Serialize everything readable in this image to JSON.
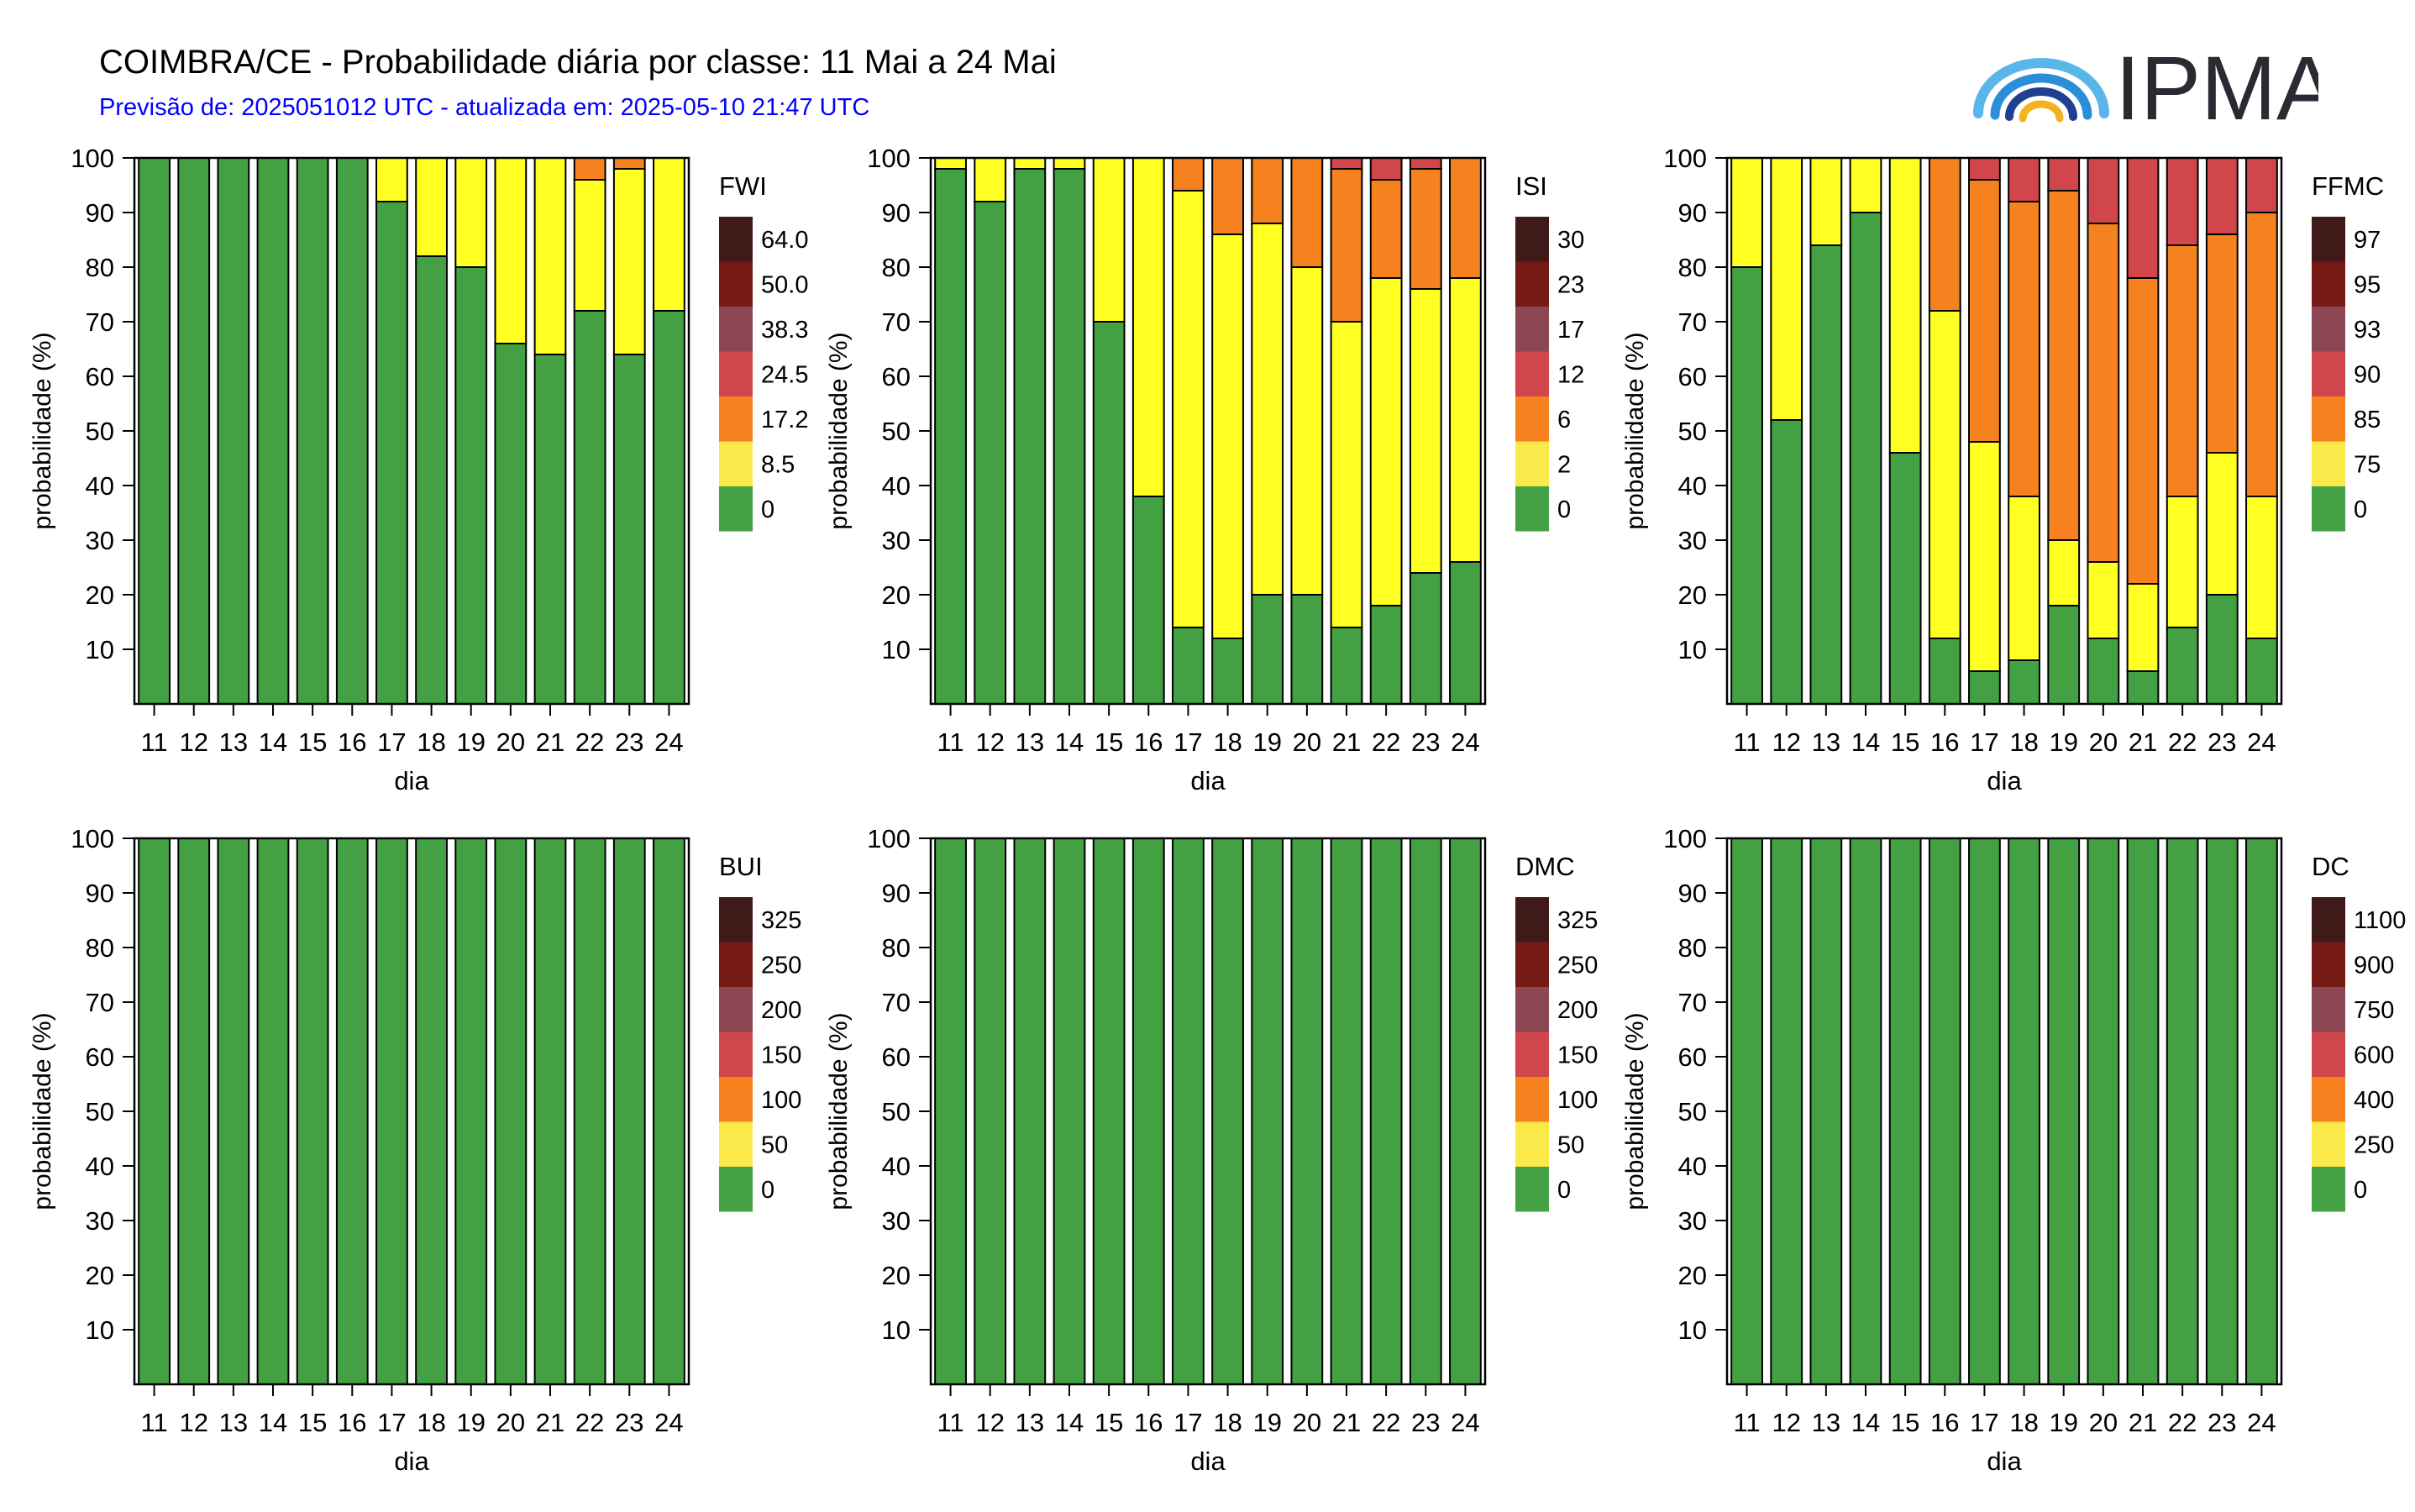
{
  "header": {
    "title": "COIMBRA/CE - Probabilidade diária por classe: 11 Mai a 24 Mai",
    "subtitle": "Previsão de: 2025051012 UTC - atualizada em: 2025-05-10 21:47 UTC",
    "subtitle_color": "#0000ff",
    "logo_text": "IPMA"
  },
  "class_colors": [
    "#43a143",
    "#ffff21",
    "#f5821f",
    "#d0464b",
    "#8c4654",
    "#761a16",
    "#3f1a19"
  ],
  "legend_swatch_colors": [
    "#43a143",
    "#fbe84a",
    "#f5821f",
    "#d0464b",
    "#8c4654",
    "#761a16",
    "#3f1a19"
  ],
  "chart_data": [
    {
      "type": "bar",
      "stacked": true,
      "title": "FWI",
      "xlabel": "dia",
      "ylabel": "probabilidade (%)",
      "ylim": [
        0,
        100
      ],
      "yticks": [
        10,
        20,
        30,
        40,
        50,
        60,
        70,
        80,
        90,
        100
      ],
      "categories": [
        "11",
        "12",
        "13",
        "14",
        "15",
        "16",
        "17",
        "18",
        "19",
        "20",
        "21",
        "22",
        "23",
        "24"
      ],
      "legend_labels": [
        "0",
        "8.5",
        "17.2",
        "24.5",
        "38.3",
        "50.0",
        "64.0"
      ],
      "series": [
        {
          "values": [
            100,
            100,
            100,
            100,
            100,
            100,
            92,
            82,
            80,
            66,
            64,
            72,
            64,
            72
          ]
        },
        {
          "values": [
            0,
            0,
            0,
            0,
            0,
            0,
            8,
            18,
            20,
            34,
            36,
            24,
            34,
            28
          ]
        },
        {
          "values": [
            0,
            0,
            0,
            0,
            0,
            0,
            0,
            0,
            0,
            0,
            0,
            4,
            2,
            0
          ]
        },
        {
          "values": [
            0,
            0,
            0,
            0,
            0,
            0,
            0,
            0,
            0,
            0,
            0,
            0,
            0,
            0
          ]
        },
        {
          "values": [
            0,
            0,
            0,
            0,
            0,
            0,
            0,
            0,
            0,
            0,
            0,
            0,
            0,
            0
          ]
        },
        {
          "values": [
            0,
            0,
            0,
            0,
            0,
            0,
            0,
            0,
            0,
            0,
            0,
            0,
            0,
            0
          ]
        },
        {
          "values": [
            0,
            0,
            0,
            0,
            0,
            0,
            0,
            0,
            0,
            0,
            0,
            0,
            0,
            0
          ]
        }
      ]
    },
    {
      "type": "bar",
      "stacked": true,
      "title": "ISI",
      "xlabel": "dia",
      "ylabel": "probabilidade (%)",
      "ylim": [
        0,
        100
      ],
      "yticks": [
        10,
        20,
        30,
        40,
        50,
        60,
        70,
        80,
        90,
        100
      ],
      "categories": [
        "11",
        "12",
        "13",
        "14",
        "15",
        "16",
        "17",
        "18",
        "19",
        "20",
        "21",
        "22",
        "23",
        "24"
      ],
      "legend_labels": [
        "0",
        "2",
        "6",
        "12",
        "17",
        "23",
        "30"
      ],
      "series": [
        {
          "values": [
            98,
            92,
            98,
            98,
            70,
            38,
            14,
            12,
            20,
            20,
            14,
            18,
            24,
            26
          ]
        },
        {
          "values": [
            2,
            8,
            2,
            2,
            30,
            62,
            80,
            74,
            68,
            60,
            56,
            60,
            52,
            52
          ]
        },
        {
          "values": [
            0,
            0,
            0,
            0,
            0,
            0,
            6,
            14,
            12,
            20,
            28,
            18,
            22,
            22
          ]
        },
        {
          "values": [
            0,
            0,
            0,
            0,
            0,
            0,
            0,
            0,
            0,
            0,
            2,
            4,
            2,
            0
          ]
        },
        {
          "values": [
            0,
            0,
            0,
            0,
            0,
            0,
            0,
            0,
            0,
            0,
            0,
            0,
            0,
            0
          ]
        },
        {
          "values": [
            0,
            0,
            0,
            0,
            0,
            0,
            0,
            0,
            0,
            0,
            0,
            0,
            0,
            0
          ]
        },
        {
          "values": [
            0,
            0,
            0,
            0,
            0,
            0,
            0,
            0,
            0,
            0,
            0,
            0,
            0,
            0
          ]
        }
      ]
    },
    {
      "type": "bar",
      "stacked": true,
      "title": "FFMC",
      "xlabel": "dia",
      "ylabel": "probabilidade (%)",
      "ylim": [
        0,
        100
      ],
      "yticks": [
        10,
        20,
        30,
        40,
        50,
        60,
        70,
        80,
        90,
        100
      ],
      "categories": [
        "11",
        "12",
        "13",
        "14",
        "15",
        "16",
        "17",
        "18",
        "19",
        "20",
        "21",
        "22",
        "23",
        "24"
      ],
      "legend_labels": [
        "0",
        "75",
        "85",
        "90",
        "93",
        "95",
        "97"
      ],
      "series": [
        {
          "values": [
            80,
            52,
            84,
            90,
            46,
            12,
            6,
            8,
            18,
            12,
            6,
            14,
            20,
            12
          ]
        },
        {
          "values": [
            20,
            48,
            16,
            10,
            54,
            60,
            42,
            30,
            12,
            14,
            16,
            24,
            26,
            26
          ]
        },
        {
          "values": [
            0,
            0,
            0,
            0,
            0,
            28,
            48,
            54,
            64,
            62,
            56,
            46,
            40,
            52
          ]
        },
        {
          "values": [
            0,
            0,
            0,
            0,
            0,
            0,
            4,
            8,
            6,
            12,
            22,
            16,
            14,
            10
          ]
        },
        {
          "values": [
            0,
            0,
            0,
            0,
            0,
            0,
            0,
            0,
            0,
            0,
            0,
            0,
            0,
            0
          ]
        },
        {
          "values": [
            0,
            0,
            0,
            0,
            0,
            0,
            0,
            0,
            0,
            0,
            0,
            0,
            0,
            0
          ]
        },
        {
          "values": [
            0,
            0,
            0,
            0,
            0,
            0,
            0,
            0,
            0,
            0,
            0,
            0,
            0,
            0
          ]
        }
      ]
    },
    {
      "type": "bar",
      "stacked": true,
      "title": "BUI",
      "xlabel": "dia",
      "ylabel": "probabilidade (%)",
      "ylim": [
        0,
        100
      ],
      "yticks": [
        10,
        20,
        30,
        40,
        50,
        60,
        70,
        80,
        90,
        100
      ],
      "categories": [
        "11",
        "12",
        "13",
        "14",
        "15",
        "16",
        "17",
        "18",
        "19",
        "20",
        "21",
        "22",
        "23",
        "24"
      ],
      "legend_labels": [
        "0",
        "50",
        "100",
        "150",
        "200",
        "250",
        "325"
      ],
      "series": [
        {
          "values": [
            100,
            100,
            100,
            100,
            100,
            100,
            100,
            100,
            100,
            100,
            100,
            100,
            100,
            100
          ]
        }
      ]
    },
    {
      "type": "bar",
      "stacked": true,
      "title": "DMC",
      "xlabel": "dia",
      "ylabel": "probabilidade (%)",
      "ylim": [
        0,
        100
      ],
      "yticks": [
        10,
        20,
        30,
        40,
        50,
        60,
        70,
        80,
        90,
        100
      ],
      "categories": [
        "11",
        "12",
        "13",
        "14",
        "15",
        "16",
        "17",
        "18",
        "19",
        "20",
        "21",
        "22",
        "23",
        "24"
      ],
      "legend_labels": [
        "0",
        "50",
        "100",
        "150",
        "200",
        "250",
        "325"
      ],
      "series": [
        {
          "values": [
            100,
            100,
            100,
            100,
            100,
            100,
            100,
            100,
            100,
            100,
            100,
            100,
            100,
            100
          ]
        }
      ]
    },
    {
      "type": "bar",
      "stacked": true,
      "title": "DC",
      "xlabel": "dia",
      "ylabel": "probabilidade (%)",
      "ylim": [
        0,
        100
      ],
      "yticks": [
        10,
        20,
        30,
        40,
        50,
        60,
        70,
        80,
        90,
        100
      ],
      "categories": [
        "11",
        "12",
        "13",
        "14",
        "15",
        "16",
        "17",
        "18",
        "19",
        "20",
        "21",
        "22",
        "23",
        "24"
      ],
      "legend_labels": [
        "0",
        "250",
        "400",
        "600",
        "750",
        "900",
        "1100"
      ],
      "series": [
        {
          "values": [
            100,
            100,
            100,
            100,
            100,
            100,
            100,
            100,
            100,
            100,
            100,
            100,
            100,
            100
          ]
        }
      ]
    }
  ]
}
